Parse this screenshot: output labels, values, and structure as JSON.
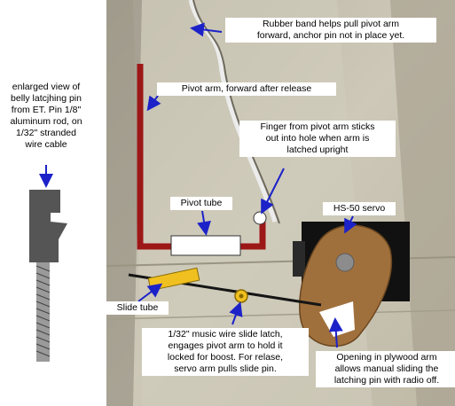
{
  "labels": {
    "enlarged_view": "enlarged view of\nbelly latcjhing pin\nfrom ET. Pin 1/8\"\naluminum rod, on\n1/32\" stranded\nwire cable",
    "rubber_band": "Rubber band helps pull pivot arm\nforward, anchor pin not in place yet.",
    "pivot_arm": "Pivot arm, forward after release",
    "finger": "Finger from pivot arm sticks\nout into hole when arm is\nlatched upright",
    "pivot_tube": "Pivot tube",
    "servo": "HS-50 servo",
    "slide_tube": "Slide tube",
    "music_wire": "1/32\" music wire slide latch,\nengages pivot arm to hold it\nlocked for boost. For relase,\nservo arm pulls slide pin.",
    "opening": "Opening in plywood arm\nallows manual sliding the\nlatching pin with radio off."
  },
  "colors": {
    "photo_background": "#c9c4b4",
    "pivot_arm": "#9c1717",
    "slide_tube": "#f0c020",
    "plywood_arm": "#a0703c",
    "servo_body": "#111111",
    "arrow": "#1c22c8",
    "latch_pin": "#555555"
  }
}
